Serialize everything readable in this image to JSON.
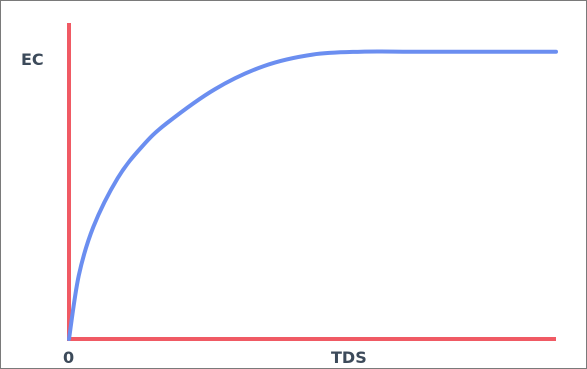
{
  "chart_data": {
    "type": "line",
    "ylabel": "EC",
    "xlabel": "TDS",
    "origin_label": "0",
    "series": [
      {
        "x": [
          0,
          0.02,
          0.05,
          0.1,
          0.15,
          0.2,
          0.3,
          0.4,
          0.5,
          0.6,
          0.7,
          0.8,
          0.9,
          1.0
        ],
        "values": [
          0,
          0.22,
          0.39,
          0.56,
          0.67,
          0.75,
          0.87,
          0.95,
          0.99,
          1.0,
          1.0,
          1.0,
          1.0,
          1.0
        ]
      }
    ],
    "xlim": [
      0,
      1
    ],
    "ylim": [
      0,
      1.1
    ],
    "grid": false,
    "colors": {
      "axis": "#f05a64",
      "line": "#6b8ef0",
      "label": "#3c4a5a"
    }
  }
}
